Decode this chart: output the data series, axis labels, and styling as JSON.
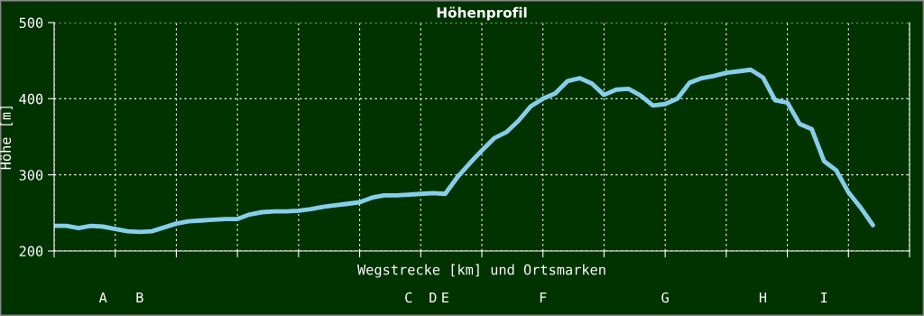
{
  "chart_data": {
    "type": "line",
    "title": "Höhenprofil",
    "xlabel": "Wegstrecke [km] und Ortsmarken",
    "ylabel": "Höhe [m]",
    "categories": [
      null,
      null,
      null,
      null,
      "A",
      null,
      null,
      "B",
      null,
      null,
      null,
      null,
      null,
      null,
      null,
      null,
      null,
      null,
      null,
      null,
      null,
      null,
      null,
      null,
      null,
      null,
      null,
      null,
      null,
      "C",
      null,
      "D",
      "E",
      null,
      null,
      null,
      null,
      null,
      null,
      null,
      "F",
      null,
      null,
      null,
      null,
      null,
      null,
      null,
      null,
      null,
      "G",
      null,
      null,
      null,
      null,
      null,
      null,
      null,
      "H",
      null,
      null,
      null,
      null,
      "I",
      null,
      null,
      null,
      null,
      null,
      null,
      null
    ],
    "series": [
      {
        "color": "#87ceeb",
        "values": [
          233,
          233,
          230,
          233,
          232,
          229,
          226,
          225,
          226,
          231,
          236,
          239,
          240,
          241,
          242,
          242,
          248,
          251,
          252,
          252,
          253,
          255,
          258,
          260,
          262,
          264,
          270,
          273,
          273,
          274,
          275,
          276,
          275,
          297,
          315,
          332,
          348,
          356,
          371,
          390,
          400,
          407,
          423,
          427,
          420,
          405,
          412,
          413,
          404,
          391,
          393,
          400,
          421,
          427,
          430,
          434,
          436,
          438,
          428,
          398,
          395,
          367,
          360,
          318,
          306,
          277,
          257,
          234,
          null,
          null,
          null
        ]
      }
    ],
    "ylim": [
      200,
      500
    ],
    "yticks": [
      200,
      300,
      400,
      500
    ],
    "grid": true,
    "line_style": "solid",
    "marker": "none"
  }
}
